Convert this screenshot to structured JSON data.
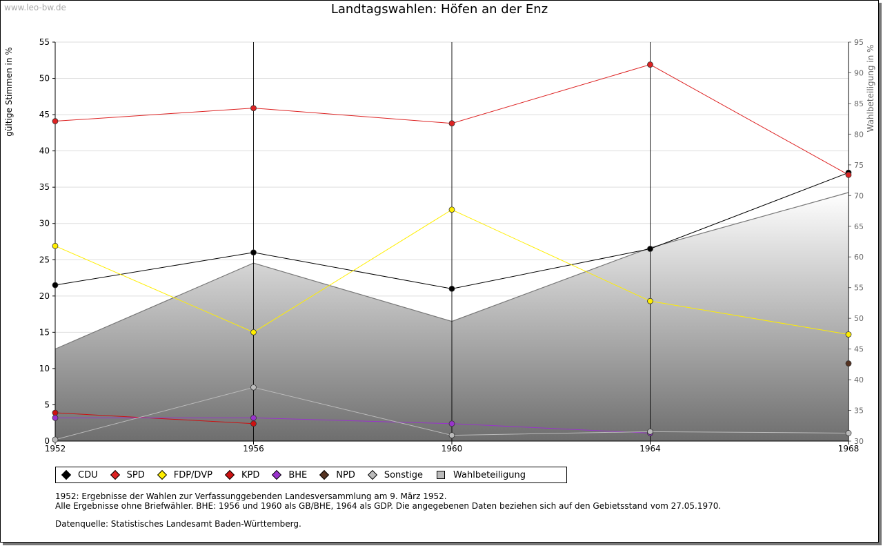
{
  "watermark": "www.leo-bw.de",
  "title": "Landtagswahlen: Höfen an der Enz",
  "chart_data": {
    "type": "line",
    "title": "Landtagswahlen: Höfen an der Enz",
    "xlabel": "",
    "ylabel": "gültige Stimmen in %",
    "y2label": "Wahlbeteiligung in %",
    "x": [
      "1952",
      "1956",
      "1960",
      "1964",
      "1968"
    ],
    "ylim": [
      0,
      55
    ],
    "y2lim": [
      30,
      95
    ],
    "yticks": [
      "0",
      "5",
      "10",
      "15",
      "20",
      "25",
      "30",
      "35",
      "40",
      "45",
      "50",
      "55"
    ],
    "y2ticks": [
      "30",
      "35",
      "40",
      "45",
      "50",
      "55",
      "60",
      "65",
      "70",
      "75",
      "80",
      "85",
      "90",
      "95"
    ],
    "grid": true,
    "legend_position": "bottom",
    "series": [
      {
        "name": "CDU",
        "color": "#000000",
        "values": [
          21.5,
          26.0,
          21.0,
          26.5,
          37.0
        ]
      },
      {
        "name": "SPD",
        "color": "#dd2222",
        "values": [
          44.1,
          45.9,
          43.8,
          51.9,
          36.7
        ]
      },
      {
        "name": "FDP/DVP",
        "color": "#ffee00",
        "values": [
          26.9,
          15.0,
          31.9,
          19.3,
          14.7
        ]
      },
      {
        "name": "KPD",
        "color": "#cc1111",
        "values": [
          3.9,
          2.4,
          null,
          null,
          null
        ]
      },
      {
        "name": "BHE",
        "color": "#9933cc",
        "values": [
          3.2,
          3.2,
          2.4,
          1.1,
          null
        ]
      },
      {
        "name": "NPD",
        "color": "#553322",
        "values": [
          null,
          null,
          null,
          null,
          10.7
        ]
      },
      {
        "name": "Sonstige",
        "color": "#bbbbbb",
        "values": [
          0.2,
          7.4,
          0.8,
          1.3,
          1.1
        ]
      }
    ],
    "area_series": {
      "name": "Wahlbeteiligung",
      "axis": "right",
      "values": [
        45.0,
        59.0,
        49.5,
        61.5,
        70.5
      ]
    }
  },
  "legend": {
    "items": [
      {
        "label": "CDU",
        "color": "#000000"
      },
      {
        "label": "SPD",
        "color": "#dd2222"
      },
      {
        "label": "FDP/DVP",
        "color": "#ffee00"
      },
      {
        "label": "KPD",
        "color": "#cc1111"
      },
      {
        "label": "BHE",
        "color": "#9933cc"
      },
      {
        "label": "NPD",
        "color": "#553322"
      },
      {
        "label": "Sonstige",
        "color": "#bbbbbb"
      }
    ],
    "area_label": "Wahlbeteiligung"
  },
  "notes": {
    "line1": "1952: Ergebnisse der Wahlen zur Verfassunggebenden Landesversammlung am 9. März 1952.",
    "line2": "Alle Ergebnisse ohne Briefwähler. BHE: 1956 und 1960 als GB/BHE, 1964 als GDP. Die angegebenen Daten beziehen sich auf den Gebietsstand vom 27.05.1970.",
    "source": "Datenquelle: Statistisches Landesamt Baden-Württemberg."
  }
}
